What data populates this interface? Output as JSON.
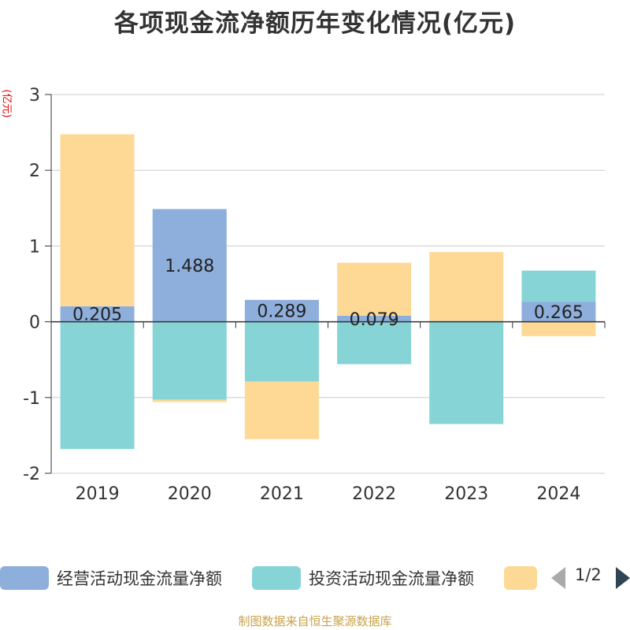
{
  "title": "各项现金流净额历年变化情况(亿元)",
  "unit": "(亿元)",
  "source": "制图数据来自恒生聚源数据库",
  "pager": "1/2",
  "colors": {
    "operating": "#8eaedb",
    "investing": "#86d4d6",
    "financing": "#fed996"
  },
  "legend": [
    {
      "name": "经营活动现金流量净额",
      "color": "#8eaedb"
    },
    {
      "name": "投资活动现金流量净额",
      "color": "#86d4d6"
    },
    {
      "name": "",
      "color": "#fed996"
    }
  ],
  "chart_data": {
    "type": "bar",
    "stacked": true,
    "categories": [
      "2019",
      "2020",
      "2021",
      "2022",
      "2023",
      "2024"
    ],
    "series": [
      {
        "name": "经营活动现金流量净额",
        "values": [
          0.205,
          1.488,
          0.289,
          0.079,
          0.01,
          0.265
        ],
        "labels": [
          "0.205",
          "1.488",
          "0.289",
          "0.079",
          "",
          "0.265"
        ]
      },
      {
        "name": "投资活动现金流量净额",
        "values": [
          -1.68,
          -1.03,
          -0.79,
          -0.56,
          -1.35,
          0.41
        ]
      },
      {
        "values": [
          2.27,
          -0.03,
          -0.76,
          0.7,
          0.91,
          -0.19
        ]
      }
    ],
    "ylim": [
      -2,
      3
    ],
    "yticks": [
      -2,
      -1,
      0,
      1,
      2,
      3
    ],
    "grid": true,
    "legend_position": "bottom"
  }
}
